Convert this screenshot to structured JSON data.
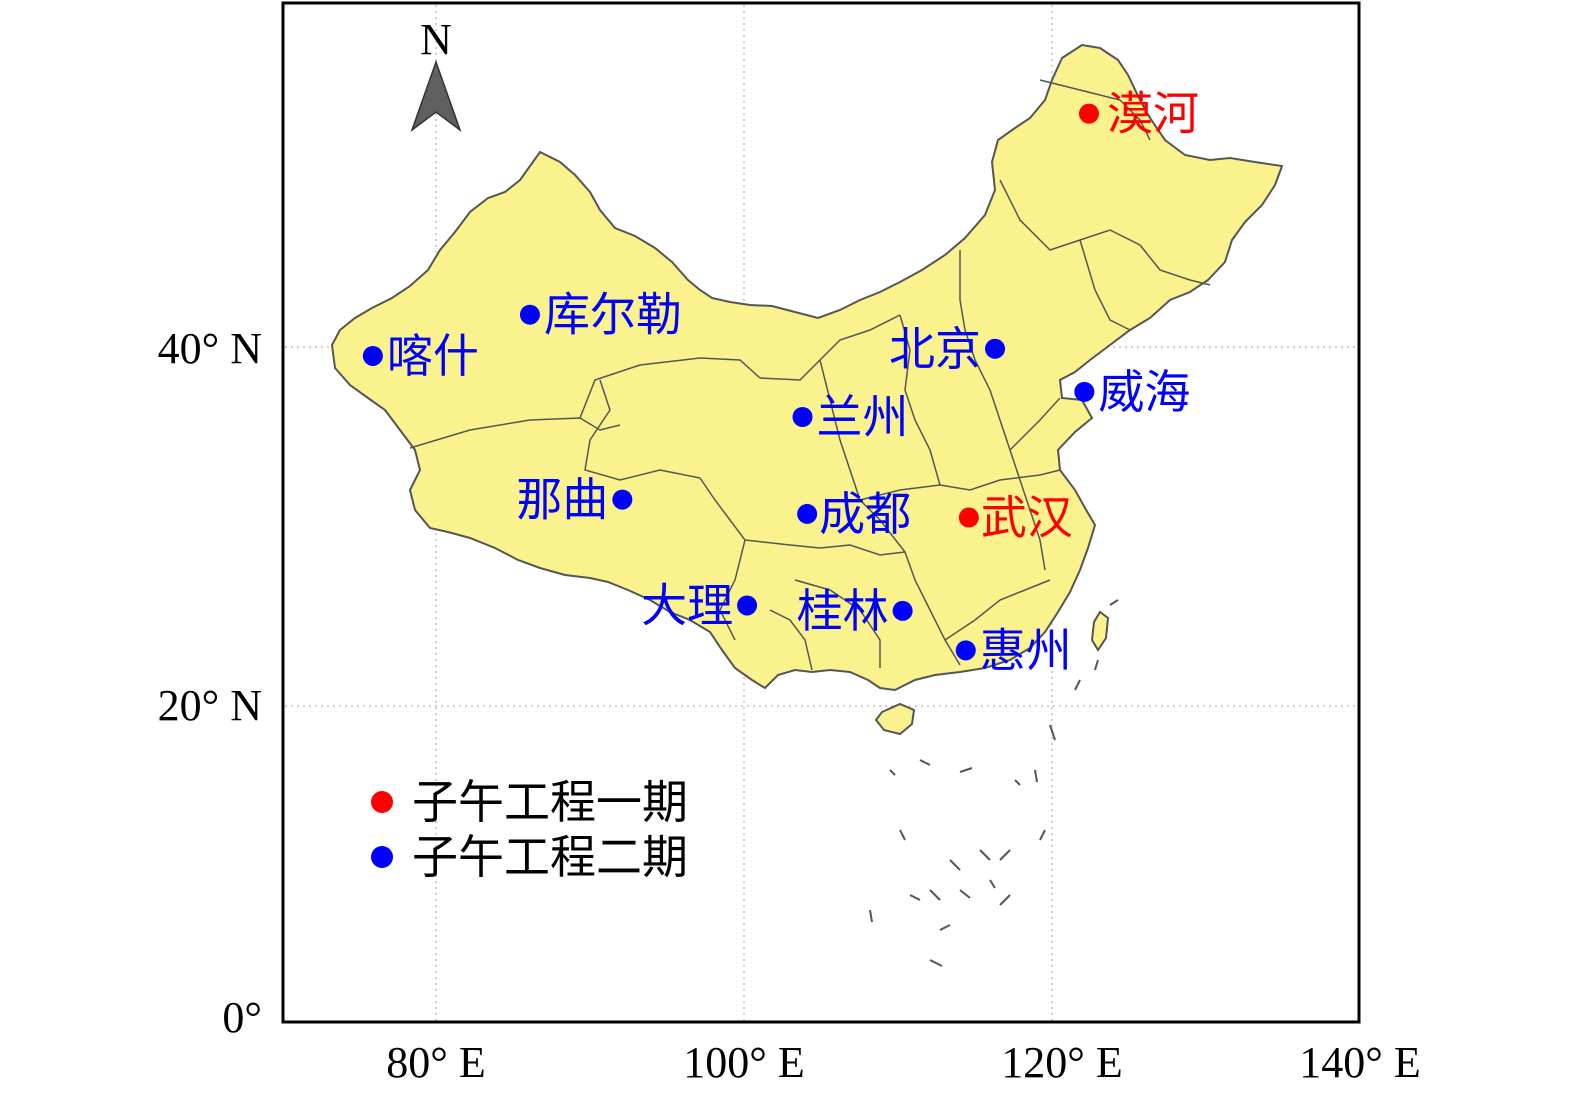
{
  "axes": {
    "x_ticks": [
      "80° E",
      "100° E",
      "120° E",
      "140° E"
    ],
    "y_ticks": [
      "40° N",
      "20° N",
      "0°"
    ]
  },
  "north_arrow": {
    "label": "N"
  },
  "colors": {
    "land": "#FAF28C",
    "border": "#555555",
    "phase1": "#ff0000",
    "phase2": "#0000ff",
    "grid": "#c0c0c0"
  },
  "stations": [
    {
      "name": "漠河",
      "phase": 1,
      "lon": 122.4,
      "lat": 53.0
    },
    {
      "name": "武汉",
      "phase": 1,
      "lon": 114.6,
      "lat": 30.5
    },
    {
      "name": "喀什",
      "phase": 2,
      "lon": 75.9,
      "lat": 39.5
    },
    {
      "name": "库尔勒",
      "phase": 2,
      "lon": 86.1,
      "lat": 41.8
    },
    {
      "name": "北京",
      "phase": 2,
      "lon": 116.3,
      "lat": 39.9
    },
    {
      "name": "威海",
      "phase": 2,
      "lon": 122.1,
      "lat": 37.5
    },
    {
      "name": "兰州",
      "phase": 2,
      "lon": 103.8,
      "lat": 36.1
    },
    {
      "name": "那曲",
      "phase": 2,
      "lon": 92.1,
      "lat": 31.5
    },
    {
      "name": "成都",
      "phase": 2,
      "lon": 104.1,
      "lat": 30.7
    },
    {
      "name": "大理",
      "phase": 2,
      "lon": 100.2,
      "lat": 25.6
    },
    {
      "name": "桂林",
      "phase": 2,
      "lon": 110.3,
      "lat": 25.3
    },
    {
      "name": "惠州",
      "phase": 2,
      "lon": 114.4,
      "lat": 23.1
    }
  ],
  "legend": [
    {
      "label": "子午工程一期",
      "phase": 1
    },
    {
      "label": "子午工程二期",
      "phase": 2
    }
  ]
}
